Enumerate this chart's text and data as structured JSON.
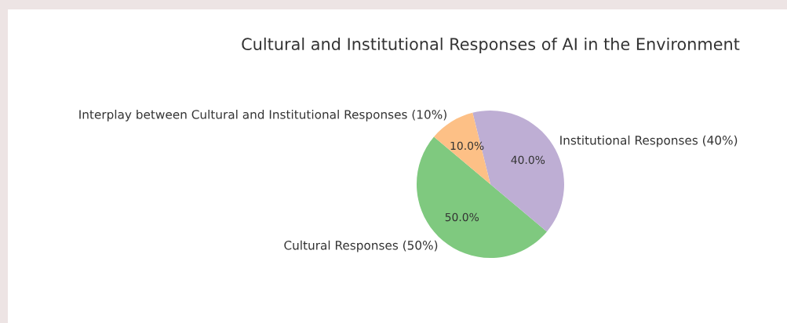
{
  "chart_data": {
    "type": "pie",
    "title": "Cultural and Institutional Responses of AI in the Environment",
    "categories": [
      "Cultural Responses (50%)",
      "Institutional Responses (40%)",
      "Interplay between Cultural and Institutional Responses (10%)"
    ],
    "values": [
      50,
      40,
      10
    ],
    "colors": [
      "#7fc97f",
      "#beaed4",
      "#fdc086"
    ],
    "value_labels": [
      "50.0%",
      "40.0%",
      "10.0%"
    ]
  }
}
